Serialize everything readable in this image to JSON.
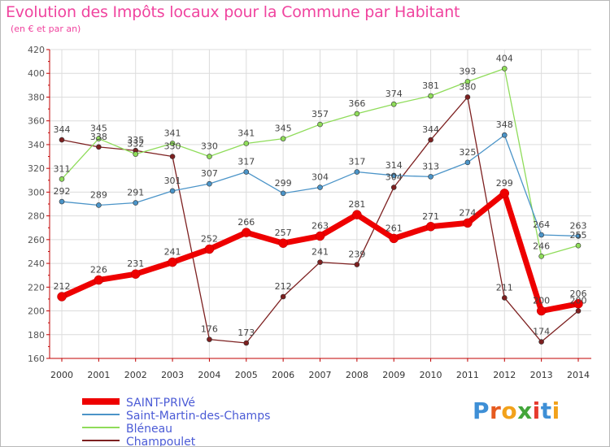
{
  "title": "Evolution des Impôts locaux pour la Commune par Habitant",
  "subtitle": "(en € et par an)",
  "logo": {
    "text": "Proxiti",
    "letter_colors": [
      "#3e8fd6",
      "#e65b1f",
      "#f2a21b",
      "#43a63a",
      "#e63b2e",
      "#3e8fd6",
      "#f2a21b"
    ]
  },
  "chart_data": {
    "type": "line",
    "title": "Evolution des Impôts locaux pour la Commune par Habitant",
    "subtitle": "(en € et par an)",
    "xlabel": "",
    "ylabel": "",
    "ylim": [
      160,
      420
    ],
    "yticks": [
      160,
      180,
      200,
      220,
      240,
      260,
      280,
      300,
      320,
      340,
      360,
      380,
      400,
      420
    ],
    "categories": [
      "2000",
      "2001",
      "2002",
      "2003",
      "2004",
      "2005",
      "2006",
      "2007",
      "2008",
      "2009",
      "2010",
      "2011",
      "2012",
      "2013",
      "2014"
    ],
    "grid": true,
    "legend_position": "bottom-left",
    "series": [
      {
        "name": "SAINT-PRIVé",
        "color": "#ee0000",
        "values": [
          212,
          226,
          231,
          241,
          252,
          266,
          257,
          263,
          281,
          261,
          271,
          274,
          299,
          200,
          206
        ]
      },
      {
        "name": "Saint-Martin-des-Champs",
        "color": "#4b94c8",
        "values": [
          292,
          289,
          291,
          301,
          307,
          317,
          299,
          304,
          317,
          314,
          313,
          325,
          348,
          264,
          263
        ]
      },
      {
        "name": "Bléneau",
        "color": "#8fdc5a",
        "values": [
          311,
          345,
          332,
          341,
          330,
          341,
          345,
          357,
          366,
          374,
          381,
          393,
          404,
          246,
          255
        ]
      },
      {
        "name": "Champoulet",
        "color": "#7d2020",
        "values": [
          344,
          338,
          335,
          330,
          176,
          173,
          212,
          241,
          239,
          304,
          344,
          380,
          211,
          174,
          200
        ]
      }
    ]
  }
}
